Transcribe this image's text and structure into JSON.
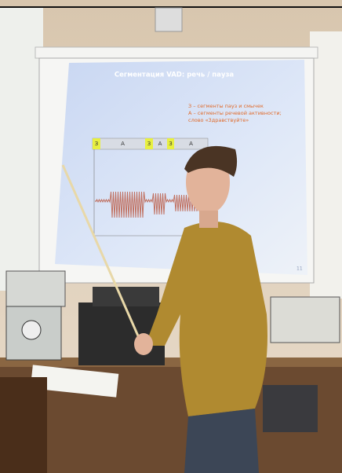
{
  "slide": {
    "title": "Сегментация VAD: речь / пауза",
    "legend": [
      "З – сегменты пауз и смычек",
      "А – сегменты речевой активности;",
      "слово «Здравствуйте»"
    ],
    "segments": [
      "З",
      "А",
      "З",
      "А",
      "З",
      "А"
    ],
    "page_number": "11"
  }
}
